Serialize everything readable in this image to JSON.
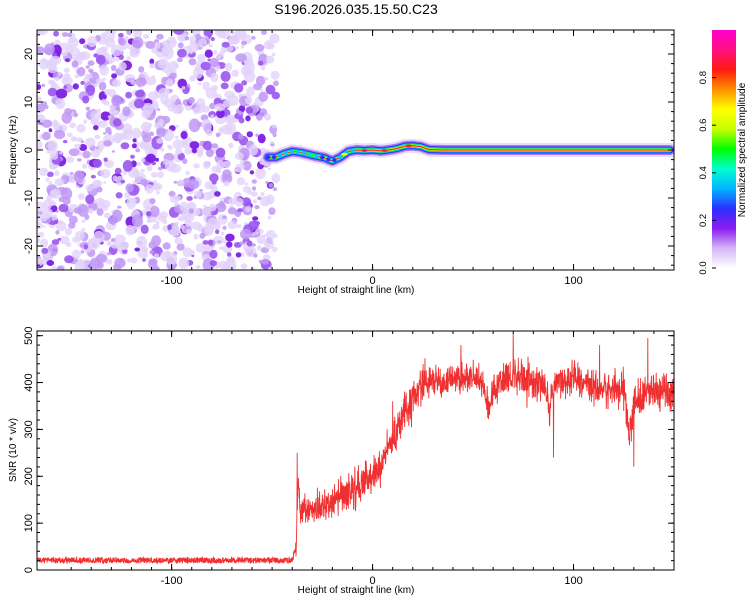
{
  "title": "S196.2026.035.15.50.C23",
  "colors": {
    "snr_line": "#f03030",
    "noise_purple": "#7a1fe0",
    "axis": "#000000",
    "background": "#ffffff"
  },
  "chart_data": [
    {
      "type": "heatmap",
      "name": "spectrogram",
      "xlabel": "Height of straight line (km)",
      "ylabel": "Frequency (Hz)",
      "xlim": [
        -167,
        150
      ],
      "ylim": [
        -25,
        25
      ],
      "xticks": [
        -100,
        0,
        100
      ],
      "yticks": [
        -20,
        -10,
        0,
        10,
        20
      ],
      "xtick_labels": [
        "-100",
        "0",
        "100"
      ],
      "ytick_labels": [
        "-20",
        "-10",
        "0",
        "10",
        "20"
      ],
      "noise_region_x": [
        -167,
        -50
      ],
      "ridge": {
        "description_of_values": "peak frequency (Hz) along height (km)",
        "x": [
          -52,
          -48,
          -44,
          -40,
          -36,
          -32,
          -28,
          -24,
          -20,
          -16,
          -12,
          -8,
          -4,
          0,
          4,
          8,
          12,
          16,
          20,
          24,
          28,
          35,
          50,
          75,
          100,
          125,
          148
        ],
        "y": [
          -1.5,
          -1.5,
          -0.8,
          -0.3,
          -0.5,
          -0.9,
          -1.3,
          -1.6,
          -2.3,
          -1.5,
          -0.3,
          0.0,
          -0.1,
          0.0,
          -0.2,
          0.0,
          0.3,
          0.8,
          0.9,
          0.7,
          0.1,
          0.0,
          0.0,
          0.0,
          0.0,
          0.0,
          0.0
        ],
        "amp": [
          0.45,
          0.5,
          0.6,
          0.65,
          0.6,
          0.55,
          0.55,
          0.5,
          0.45,
          0.55,
          0.6,
          0.7,
          0.75,
          0.8,
          0.85,
          0.85,
          0.9,
          0.95,
          0.97,
          0.95,
          0.95,
          1.0,
          1.0,
          1.0,
          1.0,
          1.0,
          1.0
        ]
      },
      "colorbar": {
        "label": "Normalized spectral amplitude",
        "range": [
          0,
          1
        ],
        "ticks": [
          0.0,
          0.2,
          0.4,
          0.6,
          0.8
        ],
        "tick_labels": [
          "0.0",
          "0.2",
          "0.4",
          "0.6",
          "0.8"
        ],
        "stops": [
          "#ffffff",
          "#d4b6f6",
          "#8a1cf0",
          "#2b30ff",
          "#00b4ff",
          "#00ffd0",
          "#00ff00",
          "#c8ff00",
          "#ffff00",
          "#ff9000",
          "#ff1a10",
          "#ff1080",
          "#ff00d0"
        ]
      }
    },
    {
      "type": "line",
      "name": "snr",
      "xlabel": "Height of straight line (km)",
      "ylabel": "SNR (10 * v/v)",
      "xlim": [
        -167,
        150
      ],
      "ylim": [
        0,
        510
      ],
      "xticks": [
        -100,
        0,
        100
      ],
      "yticks": [
        0,
        100,
        200,
        300,
        400,
        500
      ],
      "xtick_labels": [
        "-100",
        "0",
        "100"
      ],
      "ytick_labels": [
        "0",
        "100",
        "200",
        "300",
        "400",
        "500"
      ],
      "series": [
        {
          "name": "SNR",
          "envelope_x": [
            -167,
            -40,
            -38,
            -37,
            -36,
            -30,
            -20,
            -10,
            0,
            5,
            10,
            15,
            20,
            25,
            30,
            40,
            50,
            55,
            58,
            60,
            65,
            70,
            75,
            80,
            85,
            88,
            90,
            95,
            100,
            110,
            115,
            120,
            125,
            128,
            130,
            135,
            140,
            145,
            150
          ],
          "envelope_y": [
            20,
            20,
            45,
            200,
            120,
            125,
            145,
            170,
            200,
            230,
            280,
            330,
            370,
            400,
            405,
            405,
            410,
            395,
            345,
            390,
            405,
            420,
            410,
            400,
            395,
            340,
            395,
            405,
            410,
            395,
            390,
            385,
            390,
            280,
            355,
            375,
            385,
            380,
            375
          ],
          "noise_amplitude": [
            7,
            7,
            20,
            35,
            35,
            35,
            38,
            40,
            40,
            40,
            40,
            40,
            40,
            40,
            35,
            35,
            35,
            35,
            35,
            35,
            35,
            40,
            40,
            40,
            40,
            35,
            35,
            35,
            35,
            40,
            40,
            40,
            40,
            40,
            40,
            40,
            40,
            40,
            40
          ],
          "spikes": [
            {
              "x": -37.5,
              "y": 250
            },
            {
              "x": 10,
              "y": 360
            },
            {
              "x": 44,
              "y": 480
            },
            {
              "x": 70,
              "y": 505
            },
            {
              "x": 90,
              "y": 240
            },
            {
              "x": 130,
              "y": 220
            },
            {
              "x": 137,
              "y": 495
            },
            {
              "x": 113,
              "y": 480
            }
          ]
        }
      ]
    }
  ]
}
